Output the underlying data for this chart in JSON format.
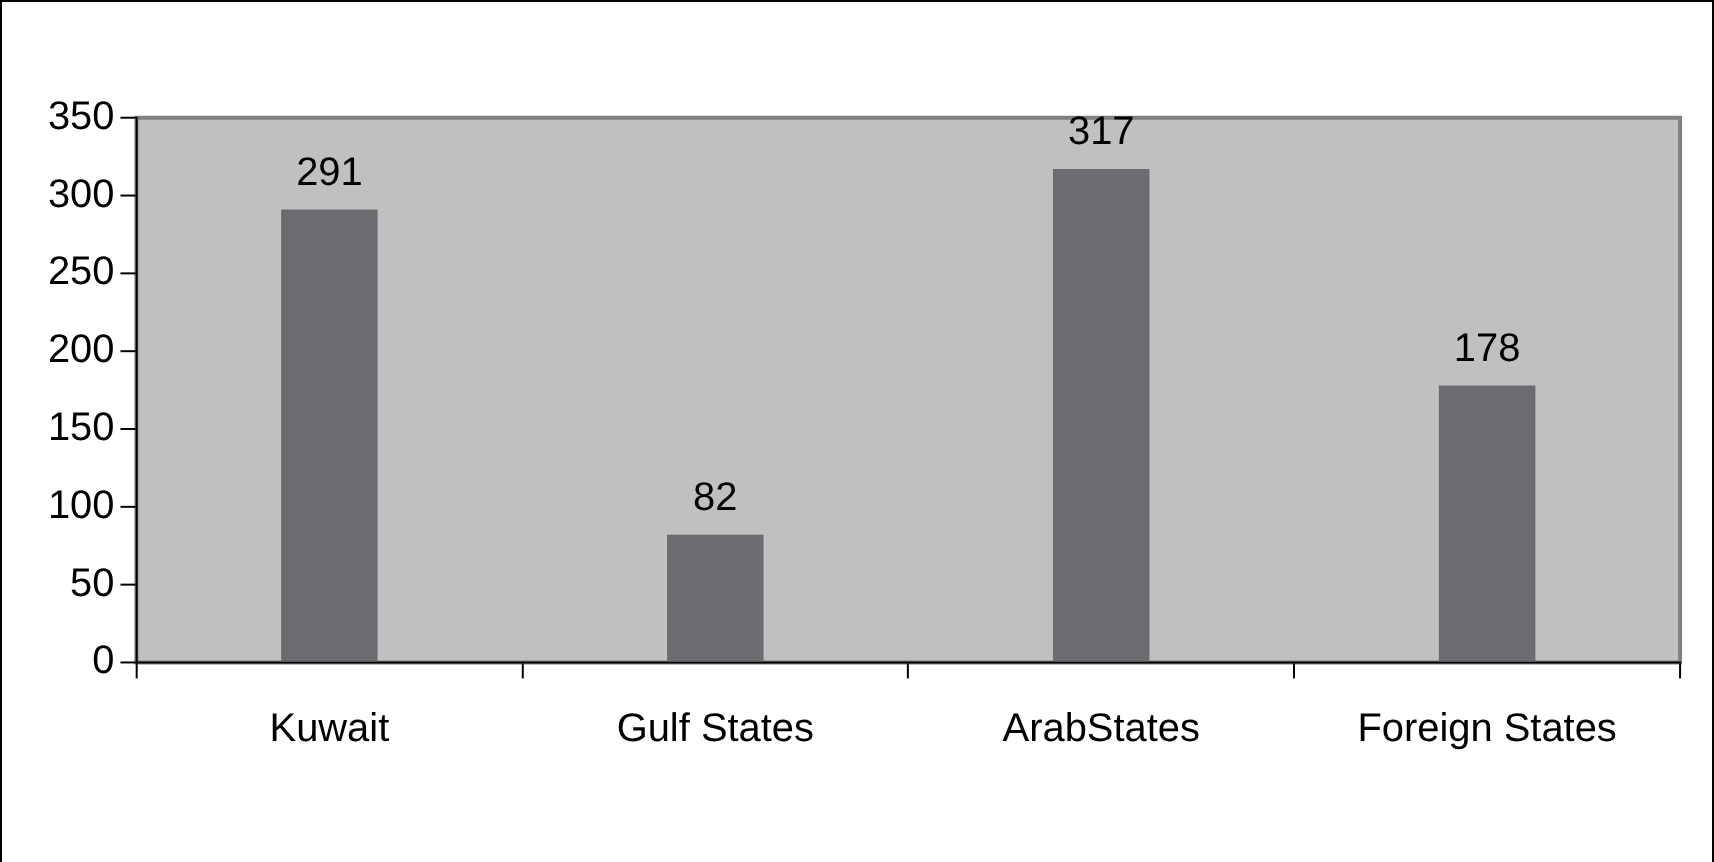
{
  "chart_data": {
    "type": "bar",
    "categories": [
      "Kuwait",
      "Gulf States",
      "ArabStates",
      "Foreign States"
    ],
    "values": [
      291,
      82,
      317,
      178
    ],
    "color": "#6b6b70",
    "ylim": [
      0,
      350
    ],
    "yticks": [
      0,
      50,
      100,
      150,
      200,
      250,
      300,
      350
    ],
    "grid": false,
    "data_labels": true,
    "legend": false
  }
}
